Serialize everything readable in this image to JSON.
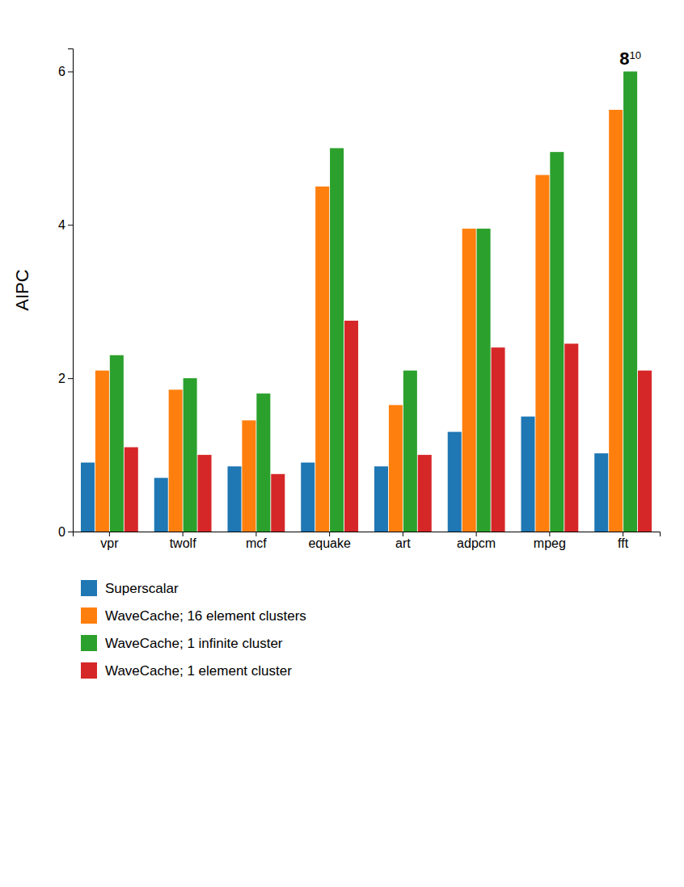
{
  "chart_data": {
    "type": "bar",
    "categories": [
      "vpr",
      "twolf",
      "mcf",
      "equake",
      "art",
      "adpcm",
      "mpeg",
      "fft"
    ],
    "series": [
      {
        "name": "Superscalar",
        "values": [
          0.9,
          0.7,
          0.85,
          0.9,
          0.85,
          1.3,
          1.5,
          1.02
        ]
      },
      {
        "name": "WaveCache; 16 element clusters",
        "values": [
          2.1,
          1.85,
          1.45,
          4.5,
          1.65,
          3.95,
          4.65,
          5.5
        ]
      },
      {
        "name": "WaveCache; 1 infinite cluster",
        "values": [
          2.3,
          2.0,
          1.8,
          5.0,
          2.1,
          3.95,
          4.95,
          6.0
        ]
      },
      {
        "name": "WaveCache; 1 element cluster",
        "values": [
          1.1,
          1.0,
          0.75,
          2.75,
          1.0,
          2.4,
          2.45,
          2.1
        ]
      }
    ],
    "y_label": "AIPC",
    "ylim": [
      0,
      6.3
    ],
    "yticks": [
      0,
      2,
      4,
      6
    ],
    "grid": false,
    "legend": "bottom",
    "annotations": [
      {
        "text": "8",
        "superscript": "10",
        "category": "fft",
        "series": "WaveCache; 1 infinite cluster"
      }
    ]
  }
}
